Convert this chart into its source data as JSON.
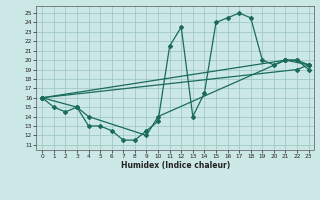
{
  "xlabel": "Humidex (Indice chaleur)",
  "bg_color": "#cce8e6",
  "grid_color": "#99c4c0",
  "line_color": "#1a6b5a",
  "xlim": [
    -0.5,
    23.5
  ],
  "ylim": [
    10.5,
    25.8
  ],
  "xticks": [
    0,
    1,
    2,
    3,
    4,
    5,
    6,
    7,
    8,
    9,
    10,
    11,
    12,
    13,
    14,
    15,
    16,
    17,
    18,
    19,
    20,
    21,
    22,
    23
  ],
  "yticks": [
    11,
    12,
    13,
    14,
    15,
    16,
    17,
    18,
    19,
    20,
    21,
    22,
    23,
    24,
    25
  ],
  "line1_x": [
    0,
    1,
    2,
    3,
    4,
    5,
    6,
    7,
    8,
    9,
    10,
    11,
    12,
    13,
    14,
    15,
    16,
    17,
    18,
    19,
    20,
    21,
    22,
    23
  ],
  "line1_y": [
    16,
    15,
    14.5,
    15,
    13,
    13,
    12.5,
    11.5,
    11.5,
    12.5,
    13.5,
    21.5,
    23.5,
    14,
    16.5,
    24,
    24.5,
    25,
    24.5,
    20,
    19.5,
    20,
    20,
    19
  ],
  "line2_x": [
    0,
    3,
    4,
    9,
    10,
    21,
    22,
    23
  ],
  "line2_y": [
    16,
    15,
    14,
    12,
    14,
    20,
    20,
    19.5
  ],
  "line3_x": [
    0,
    21,
    23
  ],
  "line3_y": [
    16,
    20,
    19.5
  ],
  "line4_x": [
    0,
    22,
    23
  ],
  "line4_y": [
    16,
    19,
    19.5
  ]
}
